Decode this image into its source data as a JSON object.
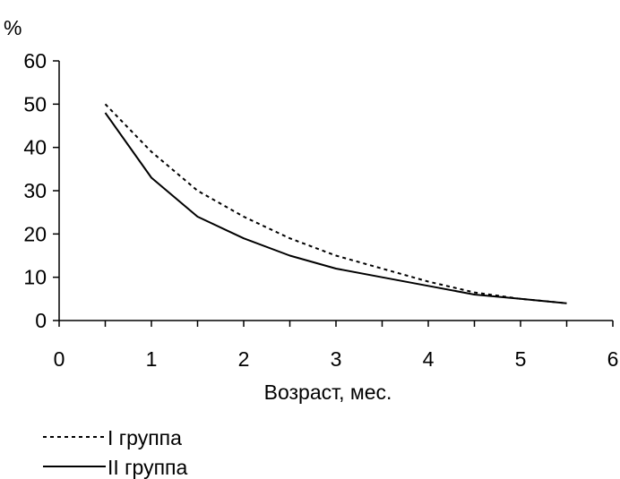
{
  "chart_data": {
    "type": "line",
    "title": "",
    "xlabel": "Возраст, мес.",
    "ylabel": "%",
    "xlim": [
      0,
      6
    ],
    "ylim": [
      0,
      60
    ],
    "xticks": [
      0,
      1,
      2,
      3,
      4,
      5,
      6
    ],
    "yticks": [
      0,
      10,
      20,
      30,
      40,
      50,
      60
    ],
    "grid": false,
    "legend_position": "bottom-left",
    "x": [
      0.5,
      1,
      1.5,
      2,
      2.5,
      3,
      3.5,
      4,
      4.5,
      5,
      5.5
    ],
    "series": [
      {
        "name": "I группа",
        "style": "dotted",
        "color": "#000000",
        "values": [
          50,
          39,
          30,
          24,
          19,
          15,
          12,
          9,
          6.5,
          5,
          4
        ]
      },
      {
        "name": "II группа",
        "style": "solid",
        "color": "#000000",
        "values": [
          48,
          33,
          24,
          19,
          15,
          12,
          10,
          8,
          6,
          5,
          4
        ]
      }
    ]
  }
}
